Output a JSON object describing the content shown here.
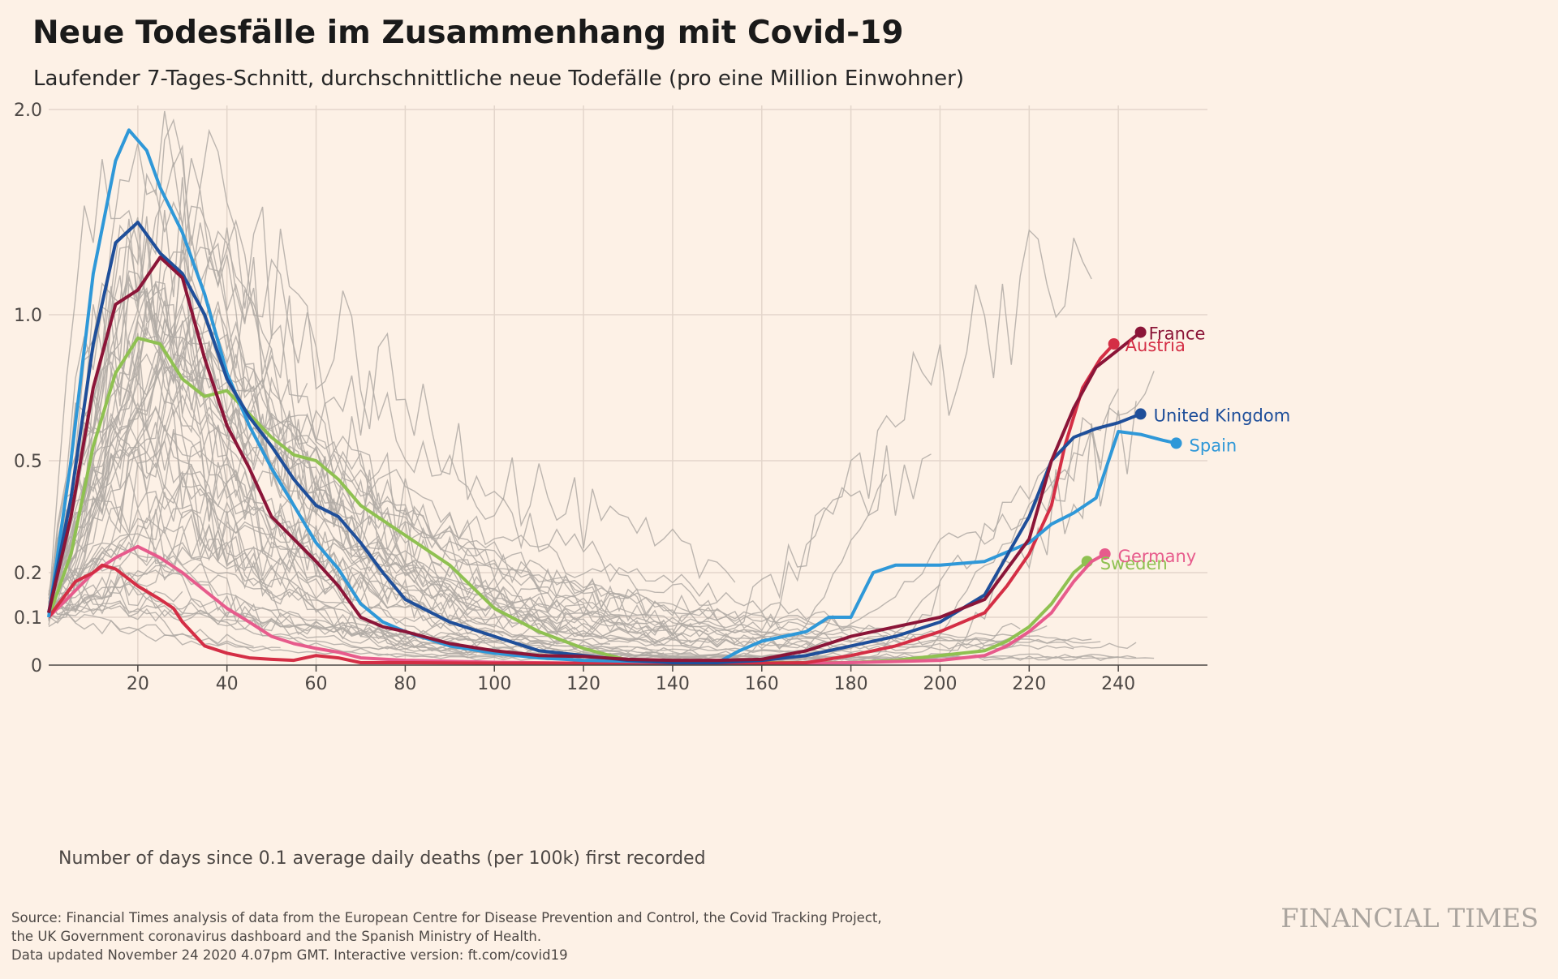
{
  "title": "Neue Todesfälle im Zusammenhang mit Covid-19",
  "subtitle": "Laufender 7-Tages-Schnitt, durchschnittliche neue Todefälle (pro eine Million Einwohner)",
  "source": {
    "line1": "Source: Financial Times analysis of data from the European Centre for Disease Prevention and Control, the Covid Tracking Project,",
    "line2": "the UK Government coronavirus dashboard and the Spanish Ministry of Health.",
    "line3": "Data updated November 24 2020 4.07pm GMT. Interactive version: ft.com/covid19"
  },
  "brand": "FINANCIAL TIMES",
  "colors": {
    "background": "#fdf1e6",
    "grid": "#e3d6cb",
    "background_lines": "#b0aaa5",
    "France": "#8b1538",
    "United Kingdom": "#1f4f9a",
    "Spain": "#2f98d8",
    "Austria": "#d42e45",
    "Germany": "#e75b8c",
    "Sweden": "#8fc151"
  },
  "chart_data": {
    "type": "line",
    "title": "Neue Todesfälle im Zusammenhang mit Covid-19",
    "subtitle": "Laufender 7-Tages-Schnitt, durchschnittliche neue Todefälle (pro eine Million Einwohner)",
    "xlabel": "Number of days since 0.1 average daily deaths (per 100k) first recorded",
    "ylabel": "",
    "x_scale": "linear",
    "y_scale": "symlog",
    "xlim": [
      0,
      260
    ],
    "ylim": [
      0,
      2.0
    ],
    "x_ticks": [
      20,
      40,
      60,
      80,
      100,
      120,
      140,
      160,
      180,
      200,
      220,
      240
    ],
    "y_ticks": [
      0,
      0.1,
      0.2,
      0.5,
      1.0,
      2.0
    ],
    "y_tick_labels": [
      "0",
      "0.1",
      "0.2",
      "0.5",
      "1.0",
      "2.0"
    ],
    "grid": true,
    "legend": "direct labels at line ends",
    "background_countries": "many other countries shown as thin grey lines (unlabelled)",
    "series": [
      {
        "name": "France",
        "x": [
          0,
          5,
          10,
          15,
          20,
          25,
          30,
          35,
          40,
          45,
          50,
          55,
          60,
          65,
          70,
          75,
          80,
          90,
          100,
          110,
          120,
          130,
          140,
          150,
          160,
          170,
          180,
          190,
          200,
          210,
          220,
          225,
          230,
          235,
          240,
          245
        ],
        "y": [
          0.11,
          0.35,
          0.75,
          1.05,
          1.12,
          1.28,
          1.18,
          0.85,
          0.62,
          0.48,
          0.35,
          0.29,
          0.23,
          0.17,
          0.1,
          0.08,
          0.07,
          0.045,
          0.03,
          0.02,
          0.018,
          0.012,
          0.01,
          0.01,
          0.012,
          0.03,
          0.06,
          0.08,
          0.1,
          0.14,
          0.29,
          0.5,
          0.68,
          0.82,
          0.88,
          0.94
        ]
      },
      {
        "name": "United Kingdom",
        "x": [
          0,
          5,
          10,
          15,
          20,
          25,
          30,
          35,
          40,
          45,
          50,
          55,
          60,
          65,
          70,
          75,
          80,
          90,
          100,
          110,
          120,
          130,
          140,
          150,
          160,
          170,
          180,
          190,
          200,
          210,
          220,
          225,
          230,
          235,
          240,
          245
        ],
        "y": [
          0.11,
          0.4,
          0.9,
          1.35,
          1.45,
          1.3,
          1.2,
          1.0,
          0.78,
          0.65,
          0.55,
          0.45,
          0.38,
          0.35,
          0.28,
          0.2,
          0.14,
          0.09,
          0.06,
          0.03,
          0.02,
          0.01,
          0.005,
          0.005,
          0.01,
          0.02,
          0.04,
          0.06,
          0.09,
          0.15,
          0.35,
          0.5,
          0.58,
          0.61,
          0.63,
          0.66
        ]
      },
      {
        "name": "Spain",
        "x": [
          0,
          5,
          10,
          15,
          18,
          22,
          25,
          30,
          35,
          40,
          45,
          50,
          55,
          60,
          65,
          70,
          75,
          80,
          90,
          100,
          110,
          120,
          130,
          140,
          150,
          155,
          160,
          170,
          175,
          180,
          185,
          190,
          200,
          210,
          220,
          225,
          230,
          235,
          240,
          245,
          250,
          253
        ],
        "y": [
          0.1,
          0.5,
          1.2,
          1.75,
          1.9,
          1.8,
          1.62,
          1.4,
          1.1,
          0.8,
          0.62,
          0.48,
          0.38,
          0.28,
          0.21,
          0.13,
          0.09,
          0.07,
          0.04,
          0.025,
          0.015,
          0.01,
          0.008,
          0.006,
          0.005,
          0.03,
          0.05,
          0.07,
          0.1,
          0.1,
          0.2,
          0.22,
          0.22,
          0.23,
          0.28,
          0.33,
          0.36,
          0.4,
          0.6,
          0.59,
          0.57,
          0.56
        ]
      },
      {
        "name": "Austria",
        "x": [
          0,
          3,
          6,
          10,
          12,
          15,
          20,
          25,
          28,
          30,
          35,
          40,
          45,
          50,
          55,
          60,
          65,
          70,
          80,
          100,
          120,
          140,
          160,
          170,
          180,
          190,
          200,
          210,
          215,
          220,
          225,
          228,
          232,
          236,
          239
        ],
        "y": [
          0.1,
          0.14,
          0.18,
          0.2,
          0.22,
          0.21,
          0.17,
          0.14,
          0.12,
          0.09,
          0.04,
          0.025,
          0.015,
          0.012,
          0.01,
          0.02,
          0.015,
          0.005,
          0.005,
          0.004,
          0.004,
          0.003,
          0.004,
          0.005,
          0.02,
          0.04,
          0.07,
          0.11,
          0.17,
          0.25,
          0.38,
          0.55,
          0.75,
          0.85,
          0.9
        ]
      },
      {
        "name": "Germany",
        "x": [
          0,
          5,
          10,
          15,
          20,
          25,
          30,
          35,
          40,
          45,
          50,
          55,
          60,
          65,
          70,
          80,
          100,
          120,
          140,
          160,
          180,
          200,
          210,
          215,
          220,
          225,
          230,
          234,
          237
        ],
        "y": [
          0.1,
          0.15,
          0.2,
          0.24,
          0.27,
          0.24,
          0.2,
          0.16,
          0.12,
          0.09,
          0.06,
          0.045,
          0.035,
          0.027,
          0.015,
          0.01,
          0.006,
          0.004,
          0.003,
          0.003,
          0.005,
          0.01,
          0.02,
          0.04,
          0.07,
          0.11,
          0.18,
          0.23,
          0.25
        ]
      },
      {
        "name": "Sweden",
        "x": [
          0,
          5,
          10,
          15,
          20,
          25,
          30,
          35,
          40,
          45,
          50,
          55,
          60,
          65,
          70,
          80,
          90,
          100,
          110,
          120,
          130,
          140,
          150,
          160,
          170,
          180,
          190,
          200,
          210,
          215,
          220,
          225,
          230,
          233
        ],
        "y": [
          0.1,
          0.25,
          0.55,
          0.8,
          0.92,
          0.9,
          0.78,
          0.72,
          0.74,
          0.66,
          0.58,
          0.52,
          0.5,
          0.45,
          0.38,
          0.3,
          0.22,
          0.12,
          0.07,
          0.035,
          0.01,
          0.008,
          0.006,
          0.005,
          0.005,
          0.005,
          0.01,
          0.02,
          0.03,
          0.05,
          0.08,
          0.13,
          0.2,
          0.23
        ]
      }
    ]
  }
}
